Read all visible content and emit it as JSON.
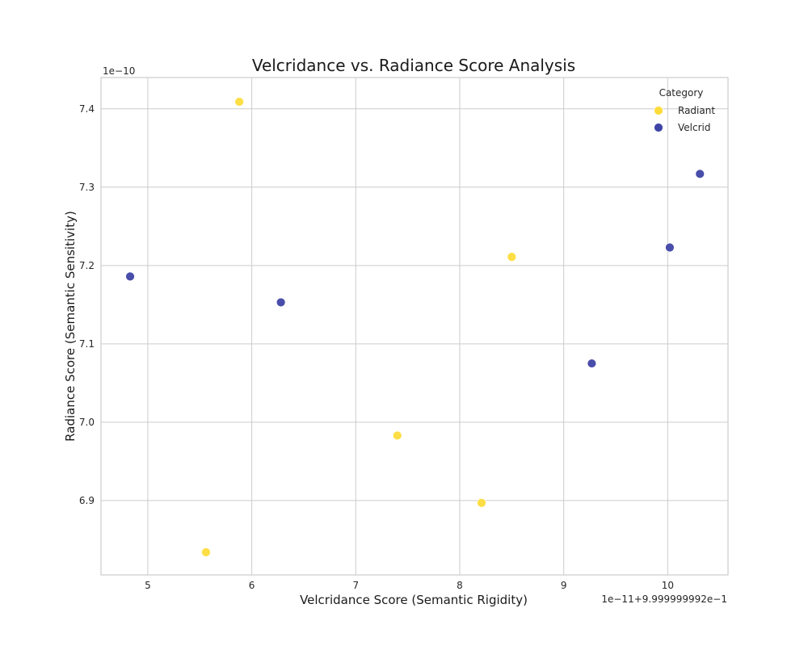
{
  "chart_data": {
    "type": "scatter",
    "title": "Velcridance vs. Radiance Score Analysis",
    "xlabel": "Velcridance Score (Semantic Rigidity)",
    "ylabel": "Radiance Score (Semantic Sensitivity)",
    "x_offset_label": "1e−11+9.999999992e−1",
    "y_offset_label": "1e−10",
    "x_ticks": [
      "5",
      "6",
      "7",
      "8",
      "9",
      "10"
    ],
    "y_ticks": [
      "6.9",
      "7.0",
      "7.1",
      "7.2",
      "7.3",
      "7.4"
    ],
    "xlim": [
      4.55,
      10.58
    ],
    "ylim": [
      6.805,
      7.44
    ],
    "grid": true,
    "legend": {
      "title": "Category",
      "placement": "top-right"
    },
    "series": [
      {
        "name": "Radiant",
        "color": "#fddc3a",
        "points": [
          {
            "x": 5.88,
            "y": 7.409
          },
          {
            "x": 8.5,
            "y": 7.211
          },
          {
            "x": 7.4,
            "y": 6.983
          },
          {
            "x": 8.21,
            "y": 6.897
          },
          {
            "x": 5.56,
            "y": 6.834
          }
        ]
      },
      {
        "name": "Velcrid",
        "color": "#3f45a6",
        "points": [
          {
            "x": 4.83,
            "y": 7.186
          },
          {
            "x": 6.28,
            "y": 7.153
          },
          {
            "x": 9.27,
            "y": 7.075
          },
          {
            "x": 10.02,
            "y": 7.223
          },
          {
            "x": 10.31,
            "y": 7.317
          }
        ]
      }
    ]
  }
}
